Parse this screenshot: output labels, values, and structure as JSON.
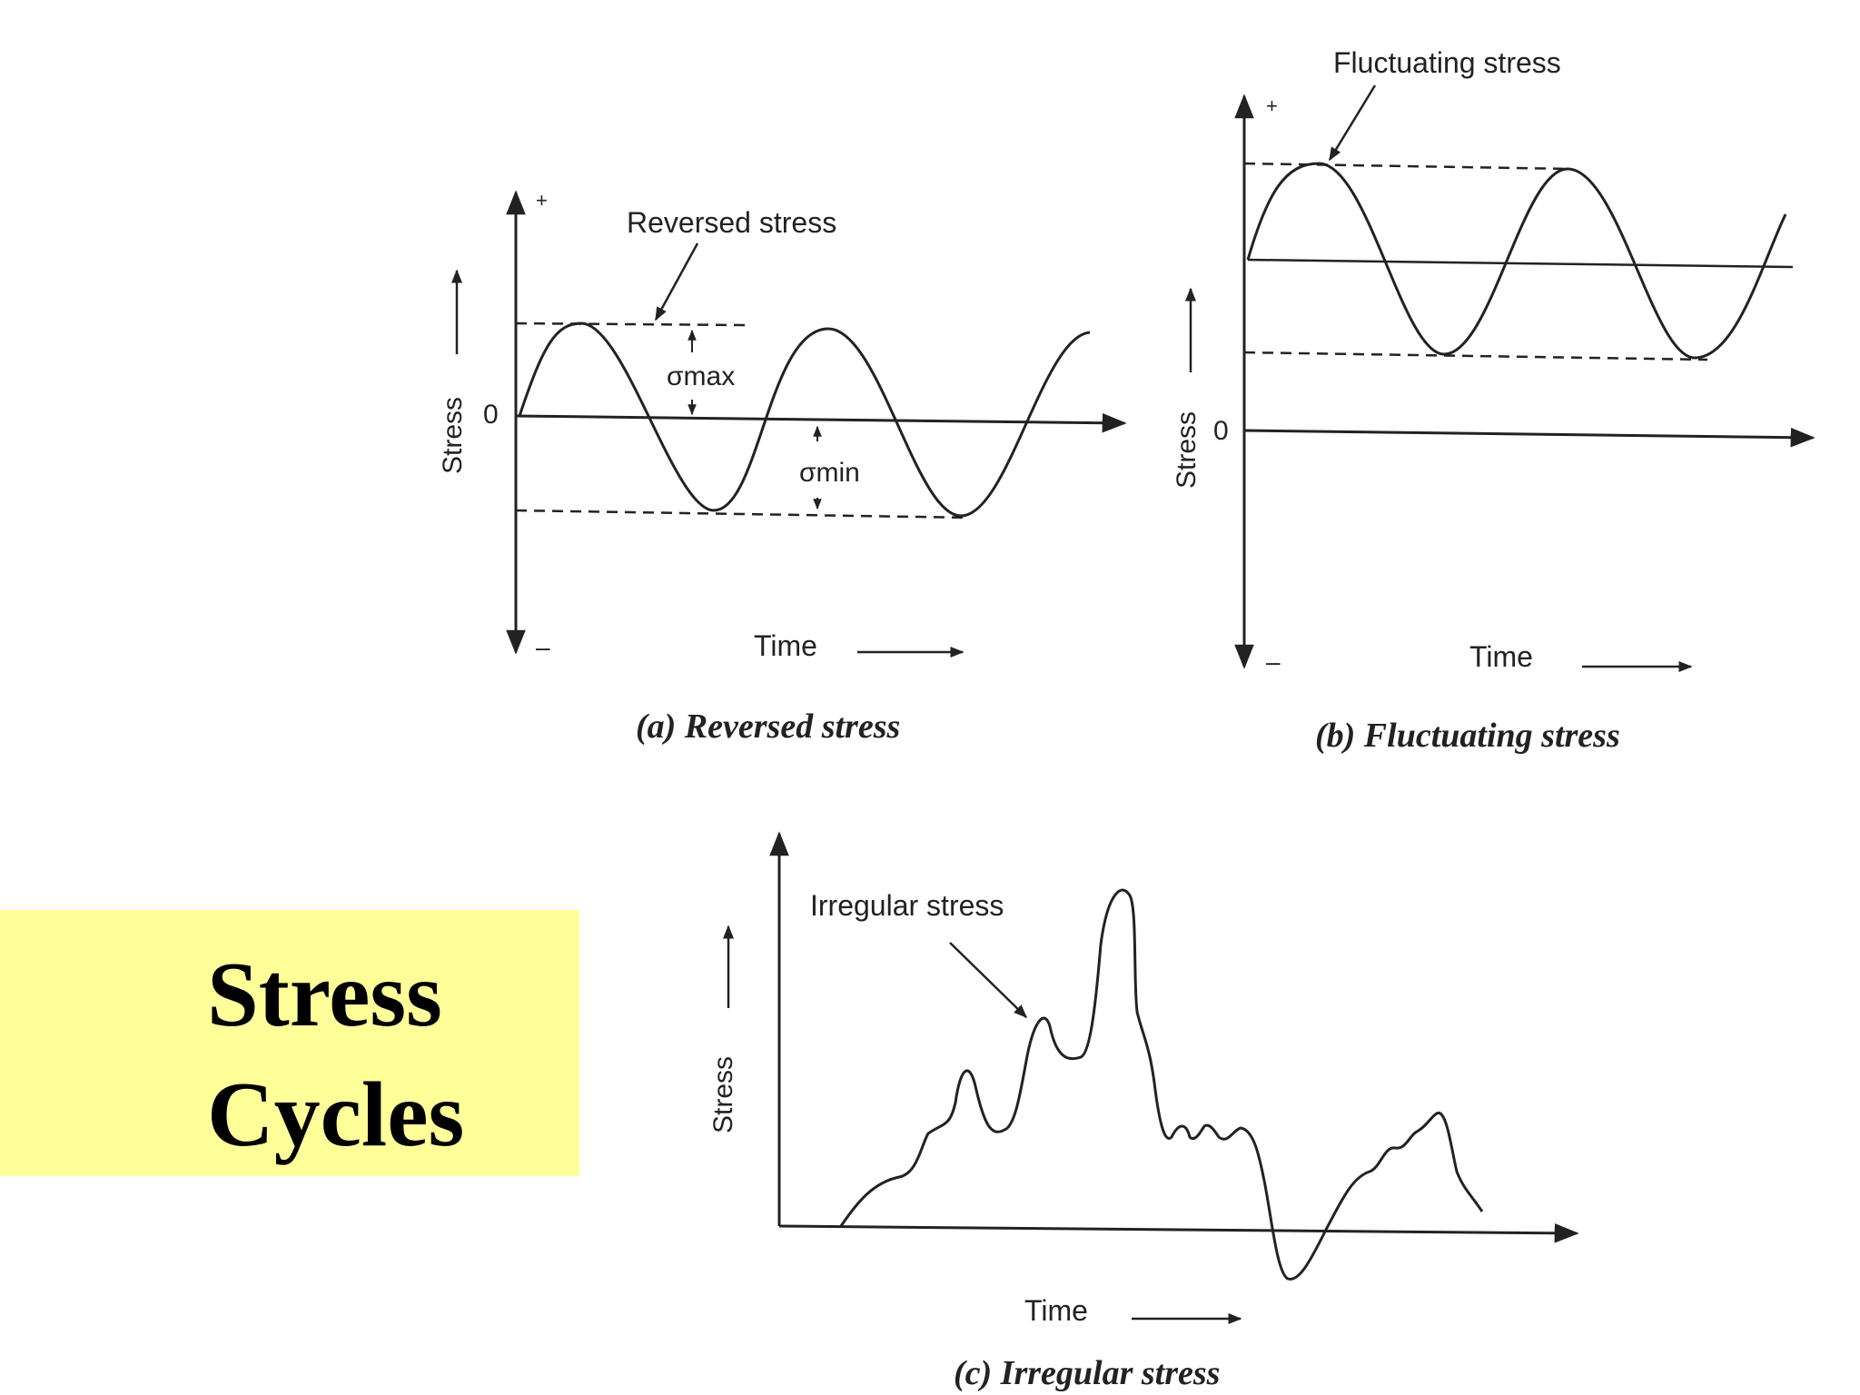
{
  "title": {
    "line1": "Stress",
    "line2": "Cycles"
  },
  "colors": {
    "title_background": "#ffff99",
    "ink": "#222222"
  },
  "diagrams": [
    {
      "id": "a",
      "caption": "(a) Reversed stress",
      "y_label": "Stress",
      "x_label": "Time",
      "origin_label": "0",
      "plus_label": "+",
      "minus_label": "–",
      "annotation": "Reversed stress",
      "sigma_max": "σmax",
      "sigma_min": "σmin"
    },
    {
      "id": "b",
      "caption": "(b) Fluctuating stress",
      "y_label": "Stress",
      "x_label": "Time",
      "origin_label": "0",
      "plus_label": "+",
      "minus_label": "–",
      "annotation": "Fluctuating stress"
    },
    {
      "id": "c",
      "caption": "(c) Irregular stress",
      "y_label": "Stress",
      "x_label": "Time",
      "annotation": "Irregular stress"
    }
  ]
}
